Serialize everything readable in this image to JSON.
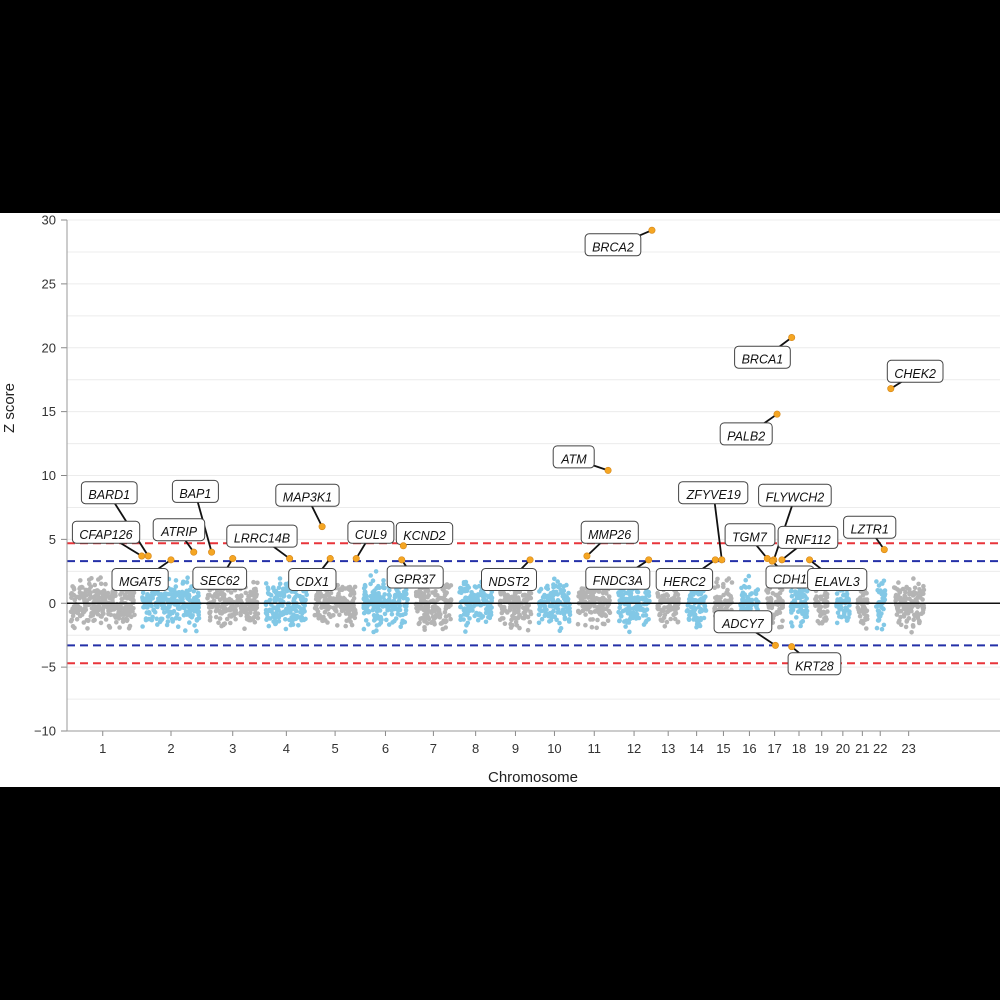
{
  "chart_data": {
    "type": "scatter",
    "subtype": "manhattan",
    "title": "",
    "xlabel": "Chromosome",
    "ylabel": "Z score",
    "ylim": [
      -10,
      30
    ],
    "yticks": [
      {
        "value": 30,
        "label": "30"
      },
      {
        "value": 25,
        "label": "25"
      },
      {
        "value": 20,
        "label": "20"
      },
      {
        "value": 15,
        "label": "15"
      },
      {
        "value": 10,
        "label": "10"
      },
      {
        "value": 5,
        "label": "5"
      },
      {
        "value": 0,
        "label": "0"
      },
      {
        "value": -5,
        "label": "−5"
      },
      {
        "value": -10,
        "label": "−10"
      }
    ],
    "grid": true,
    "thresholds": [
      {
        "name": "bonferroni",
        "values": [
          4.7,
          -4.7
        ],
        "color": "#e8353b",
        "style": "dashed"
      },
      {
        "name": "suggestive",
        "values": [
          3.3,
          -3.3
        ],
        "color": "#2430a8",
        "style": "dashed"
      }
    ],
    "chromosomes": [
      {
        "label": "1",
        "span": [
          0.0,
          2.2
        ],
        "color": "gray"
      },
      {
        "label": "2",
        "span": [
          2.2,
          4.2
        ],
        "color": "blue"
      },
      {
        "label": "3",
        "span": [
          4.2,
          6.0
        ],
        "color": "gray"
      },
      {
        "label": "4",
        "span": [
          6.0,
          7.5
        ],
        "color": "blue"
      },
      {
        "label": "5",
        "span": [
          7.5,
          9.0
        ],
        "color": "gray"
      },
      {
        "label": "6",
        "span": [
          9.0,
          10.6
        ],
        "color": "blue"
      },
      {
        "label": "7",
        "span": [
          10.6,
          11.95
        ],
        "color": "gray"
      },
      {
        "label": "8",
        "span": [
          11.95,
          13.2
        ],
        "color": "blue"
      },
      {
        "label": "9",
        "span": [
          13.2,
          14.4
        ],
        "color": "gray"
      },
      {
        "label": "10",
        "span": [
          14.4,
          15.6
        ],
        "color": "blue"
      },
      {
        "label": "11",
        "span": [
          15.6,
          16.85
        ],
        "color": "gray"
      },
      {
        "label": "12",
        "span": [
          16.85,
          18.05
        ],
        "color": "blue"
      },
      {
        "label": "13",
        "span": [
          18.05,
          18.95
        ],
        "color": "gray"
      },
      {
        "label": "14",
        "span": [
          18.95,
          19.8
        ],
        "color": "blue"
      },
      {
        "label": "15",
        "span": [
          19.8,
          20.6
        ],
        "color": "gray"
      },
      {
        "label": "16",
        "span": [
          20.6,
          21.4
        ],
        "color": "blue"
      },
      {
        "label": "17",
        "span": [
          21.4,
          22.15
        ],
        "color": "gray"
      },
      {
        "label": "18",
        "span": [
          22.15,
          22.9
        ],
        "color": "blue"
      },
      {
        "label": "19",
        "span": [
          22.9,
          23.55
        ],
        "color": "gray"
      },
      {
        "label": "20",
        "span": [
          23.55,
          24.2
        ],
        "color": "blue"
      },
      {
        "label": "21",
        "span": [
          24.2,
          24.75
        ],
        "color": "gray"
      },
      {
        "label": "22",
        "span": [
          24.75,
          25.3
        ],
        "color": "blue"
      },
      {
        "label": "23",
        "span": [
          25.3,
          26.5
        ],
        "color": "gray"
      }
    ],
    "genes": [
      {
        "name": "BRCA2",
        "x": 18.0,
        "z": 29.2,
        "label_x": 16.8,
        "label_z": 27.9
      },
      {
        "name": "BRCA1",
        "x": 22.3,
        "z": 20.8,
        "label_x": 21.4,
        "label_z": 19.1
      },
      {
        "name": "CHEK2",
        "x": 25.35,
        "z": 16.8,
        "label_x": 26.1,
        "label_z": 18.0
      },
      {
        "name": "PALB2",
        "x": 21.85,
        "z": 14.8,
        "label_x": 20.9,
        "label_z": 13.1
      },
      {
        "name": "ATM",
        "x": 16.65,
        "z": 10.4,
        "label_x": 15.6,
        "label_z": 11.3
      },
      {
        "name": "BARD1",
        "x": 2.5,
        "z": 3.7,
        "label_x": 1.3,
        "label_z": 8.5
      },
      {
        "name": "BAP1",
        "x": 4.45,
        "z": 4.0,
        "label_x": 3.95,
        "label_z": 8.6
      },
      {
        "name": "MAP3K1",
        "x": 7.85,
        "z": 6.0,
        "label_x": 7.4,
        "label_z": 8.3
      },
      {
        "name": "ATRIP",
        "x": 3.9,
        "z": 4.0,
        "label_x": 3.45,
        "label_z": 5.6
      },
      {
        "name": "CFAP126",
        "x": 2.3,
        "z": 3.7,
        "label_x": 1.2,
        "label_z": 5.4
      },
      {
        "name": "LRRC14B",
        "x": 6.85,
        "z": 3.5,
        "label_x": 6.0,
        "label_z": 5.1
      },
      {
        "name": "CUL9",
        "x": 8.9,
        "z": 3.5,
        "label_x": 9.35,
        "label_z": 5.4
      },
      {
        "name": "KCND2",
        "x": 10.35,
        "z": 4.5,
        "label_x": 11.0,
        "label_z": 5.3
      },
      {
        "name": "MMP26",
        "x": 16.0,
        "z": 3.7,
        "label_x": 16.7,
        "label_z": 5.4
      },
      {
        "name": "ZFYVE19",
        "x": 20.15,
        "z": 3.4,
        "label_x": 19.9,
        "label_z": 8.5
      },
      {
        "name": "FLYWCH2",
        "x": 21.75,
        "z": 3.4,
        "label_x": 22.4,
        "label_z": 8.3
      },
      {
        "name": "TGM7",
        "x": 21.55,
        "z": 3.5,
        "label_x": 21.0,
        "label_z": 5.2
      },
      {
        "name": "RNF112",
        "x": 22.0,
        "z": 3.4,
        "label_x": 22.8,
        "label_z": 5.0
      },
      {
        "name": "LZTR1",
        "x": 25.15,
        "z": 4.2,
        "label_x": 24.7,
        "label_z": 5.8
      },
      {
        "name": "MGAT5",
        "x": 3.2,
        "z": 3.4,
        "label_x": 2.25,
        "label_z": 1.7
      },
      {
        "name": "SEC62",
        "x": 5.1,
        "z": 3.5,
        "label_x": 4.7,
        "label_z": 1.8
      },
      {
        "name": "CDX1",
        "x": 8.1,
        "z": 3.5,
        "label_x": 7.55,
        "label_z": 1.7
      },
      {
        "name": "GPR37",
        "x": 10.3,
        "z": 3.4,
        "label_x": 10.7,
        "label_z": 1.9
      },
      {
        "name": "NDST2",
        "x": 14.25,
        "z": 3.4,
        "label_x": 13.6,
        "label_z": 1.7
      },
      {
        "name": "FNDC3A",
        "x": 17.9,
        "z": 3.4,
        "label_x": 16.95,
        "label_z": 1.8
      },
      {
        "name": "HERC2",
        "x": 19.95,
        "z": 3.4,
        "label_x": 19.0,
        "label_z": 1.7
      },
      {
        "name": "CDH1",
        "x": 21.7,
        "z": 3.3,
        "label_x": 22.25,
        "label_z": 1.9
      },
      {
        "name": "ELAVL3",
        "x": 22.85,
        "z": 3.4,
        "label_x": 23.7,
        "label_z": 1.7
      },
      {
        "name": "ADCY7",
        "x": 21.8,
        "z": -3.3,
        "label_x": 20.8,
        "label_z": -1.6
      },
      {
        "name": "KRT28",
        "x": 22.3,
        "z": -3.4,
        "label_x": 23.0,
        "label_z": -4.9
      }
    ]
  }
}
